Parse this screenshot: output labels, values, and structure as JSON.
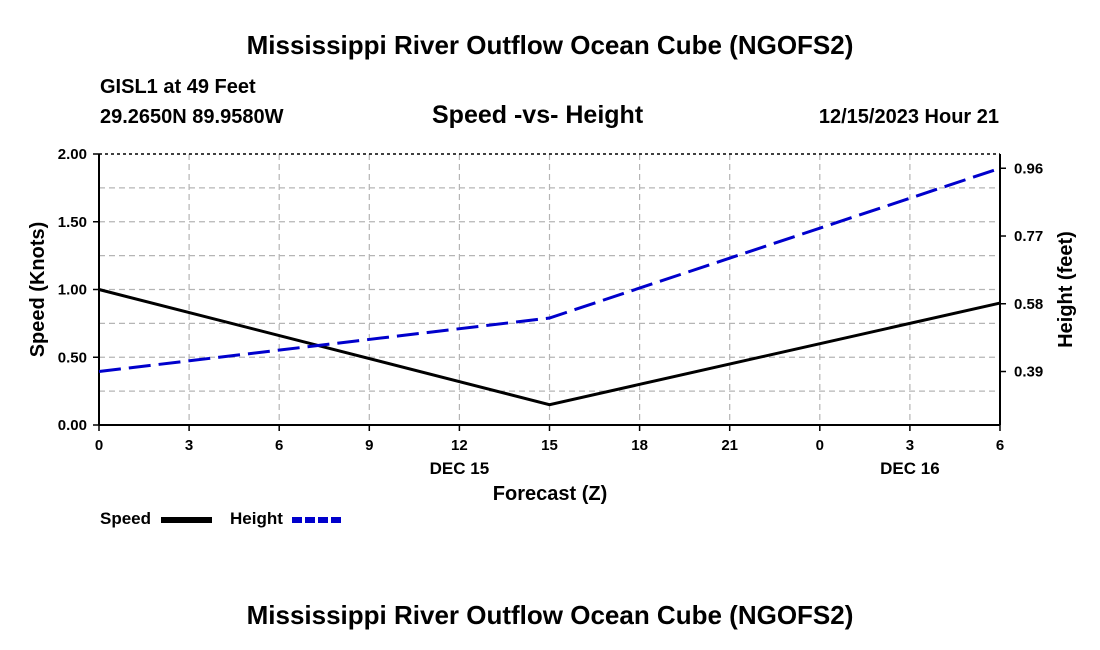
{
  "page_title": "Mississippi River Outflow Ocean Cube (NGOFS2)",
  "footer_title": "Mississippi River Outflow Ocean Cube (NGOFS2)",
  "station": {
    "name": "GISL1 at 49 Feet",
    "coords": "29.2650N  89.9580W",
    "datetime": "12/15/2023 Hour 21"
  },
  "chart_data": {
    "type": "line",
    "title": "Speed -vs- Height",
    "xlabel": "Forecast (Z)",
    "ylabel": "Speed (Knots)",
    "y2label": "Height (feet)",
    "x_hours": [
      0,
      3,
      6,
      9,
      12,
      15,
      18,
      21,
      24,
      27,
      30
    ],
    "x_tick_labels": [
      "0",
      "3",
      "6",
      "9",
      "12",
      "15",
      "18",
      "21",
      "0",
      "3",
      "6"
    ],
    "x_date_labels": [
      {
        "at_hour": 12,
        "label": "DEC 15"
      },
      {
        "at_hour": 27,
        "label": "DEC 16"
      }
    ],
    "xlim": [
      0,
      30
    ],
    "ylim": [
      0,
      2.0
    ],
    "y_ticks": [
      0.0,
      0.5,
      1.0,
      1.5,
      2.0
    ],
    "y_tick_labels": [
      "0.00",
      "0.50",
      "1.00",
      "1.50",
      "2.00"
    ],
    "y2lim": [
      0.24,
      1.0
    ],
    "y2_ticks": [
      0.39,
      0.58,
      0.77,
      0.96
    ],
    "y2_tick_labels": [
      "0.39",
      "0.58",
      "0.77",
      "0.96"
    ],
    "grid": true,
    "series": [
      {
        "name": "Speed",
        "axis": "left",
        "style": "solid",
        "color": "#000000",
        "x": [
          0,
          15,
          30
        ],
        "values": [
          1.0,
          0.15,
          0.9
        ]
      },
      {
        "name": "Height",
        "axis": "right",
        "style": "dashed",
        "color": "#0000cc",
        "x": [
          0,
          15,
          30
        ],
        "values": [
          0.39,
          0.54,
          0.96
        ]
      }
    ],
    "legend": [
      {
        "label": "Speed",
        "color": "#000000",
        "style": "solid"
      },
      {
        "label": "Height",
        "color": "#0000cc",
        "style": "dashed"
      }
    ]
  }
}
